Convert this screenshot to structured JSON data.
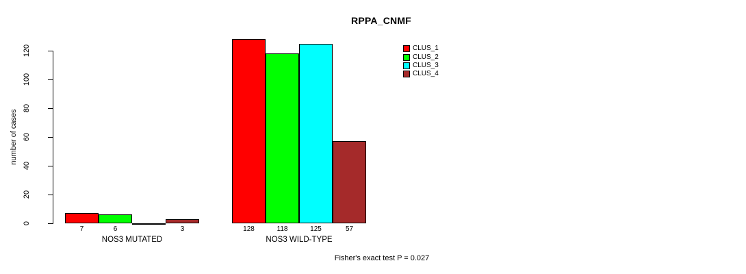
{
  "chart_data": {
    "type": "bar",
    "title": "RPPA_CNMF",
    "ylabel": "number of cases",
    "xlabel": "",
    "yticks": [
      0,
      20,
      40,
      60,
      80,
      100,
      120
    ],
    "ylim": [
      0,
      128
    ],
    "grid": false,
    "background": "#ffffff",
    "bar_border_color": "#000000",
    "categories": [
      "NOS3 MUTATED",
      "NOS3 WILD-TYPE"
    ],
    "series": [
      {
        "name": "CLUS_1",
        "color": "#ff0000",
        "values": [
          7,
          128
        ],
        "value_labels": [
          "7",
          "128"
        ]
      },
      {
        "name": "CLUS_2",
        "color": "#00ff00",
        "values": [
          6,
          118
        ],
        "value_labels": [
          "6",
          "118"
        ]
      },
      {
        "name": "CLUS_3",
        "color": "#00ffff",
        "values": [
          0,
          125
        ],
        "value_labels": [
          "",
          "125"
        ]
      },
      {
        "name": "CLUS_4",
        "color": "#a52a2a",
        "values": [
          3,
          57
        ],
        "value_labels": [
          "3",
          "57"
        ]
      }
    ],
    "legend_position": "top-right",
    "annotation": "Fisher's exact test P = 0.027"
  }
}
